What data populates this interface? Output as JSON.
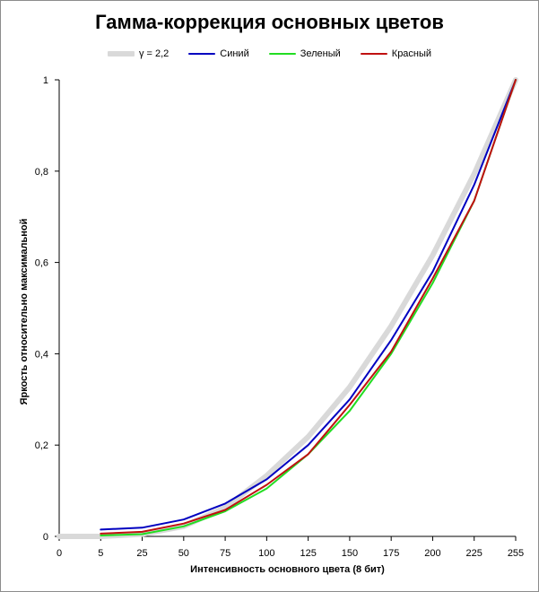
{
  "chart_data": {
    "type": "line",
    "title": "Гамма-коррекция основных цветов",
    "xlabel": "Интенсивность  основного  цвета (8 бит)",
    "ylabel": "Яркость  относительно  максимальной",
    "categories": [
      "0",
      "5",
      "25",
      "50",
      "75",
      "100",
      "125",
      "150",
      "175",
      "200",
      "225",
      "255"
    ],
    "ylim": [
      0,
      1
    ],
    "yticks": [
      "0",
      "0,2",
      "0,4",
      "0,6",
      "0,8",
      "1"
    ],
    "ytick_values": [
      0,
      0.2,
      0.4,
      0.6,
      0.8,
      1
    ],
    "grid": false,
    "legend_position": "top",
    "series": [
      {
        "name": "γ = 2,2",
        "color": "#d9d9d9",
        "values": [
          0,
          0,
          0.005,
          0.022,
          0.063,
          0.133,
          0.218,
          0.327,
          0.461,
          0.616,
          0.794,
          1.0
        ]
      },
      {
        "name": "Синий",
        "color": "#0000c0",
        "values": [
          null,
          0.015,
          0.019,
          0.037,
          0.072,
          0.125,
          0.2,
          0.3,
          0.43,
          0.58,
          0.77,
          1.0
        ]
      },
      {
        "name": "Зеленый",
        "color": "#22dd22",
        "values": [
          null,
          0.002,
          0.005,
          0.022,
          0.055,
          0.105,
          0.18,
          0.275,
          0.4,
          0.555,
          0.735,
          1.0
        ]
      },
      {
        "name": "Красный",
        "color": "#c01010",
        "values": [
          null,
          0.006,
          0.01,
          0.028,
          0.058,
          0.113,
          0.18,
          0.288,
          0.405,
          0.565,
          0.735,
          1.0
        ]
      }
    ]
  }
}
